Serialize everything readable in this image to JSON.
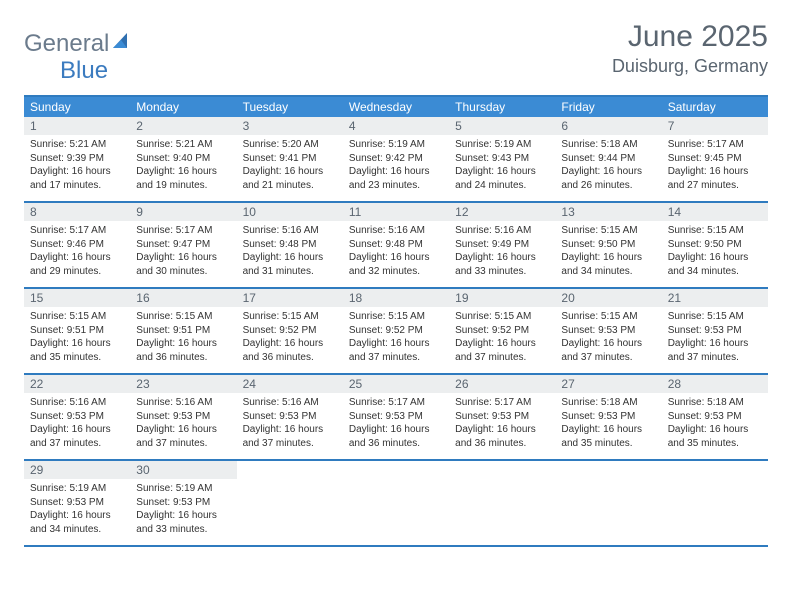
{
  "logo": {
    "text1": "General",
    "text2": "Blue"
  },
  "title": "June 2025",
  "location": "Duisburg, Germany",
  "colors": {
    "header_bg": "#3b8bd4",
    "border": "#2f7bbf",
    "daynum_bg": "#eceeef",
    "text_muted": "#5a6570"
  },
  "day_names": [
    "Sunday",
    "Monday",
    "Tuesday",
    "Wednesday",
    "Thursday",
    "Friday",
    "Saturday"
  ],
  "weeks": [
    [
      {
        "n": "1",
        "sr": "Sunrise: 5:21 AM",
        "ss": "Sunset: 9:39 PM",
        "d1": "Daylight: 16 hours",
        "d2": "and 17 minutes."
      },
      {
        "n": "2",
        "sr": "Sunrise: 5:21 AM",
        "ss": "Sunset: 9:40 PM",
        "d1": "Daylight: 16 hours",
        "d2": "and 19 minutes."
      },
      {
        "n": "3",
        "sr": "Sunrise: 5:20 AM",
        "ss": "Sunset: 9:41 PM",
        "d1": "Daylight: 16 hours",
        "d2": "and 21 minutes."
      },
      {
        "n": "4",
        "sr": "Sunrise: 5:19 AM",
        "ss": "Sunset: 9:42 PM",
        "d1": "Daylight: 16 hours",
        "d2": "and 23 minutes."
      },
      {
        "n": "5",
        "sr": "Sunrise: 5:19 AM",
        "ss": "Sunset: 9:43 PM",
        "d1": "Daylight: 16 hours",
        "d2": "and 24 minutes."
      },
      {
        "n": "6",
        "sr": "Sunrise: 5:18 AM",
        "ss": "Sunset: 9:44 PM",
        "d1": "Daylight: 16 hours",
        "d2": "and 26 minutes."
      },
      {
        "n": "7",
        "sr": "Sunrise: 5:17 AM",
        "ss": "Sunset: 9:45 PM",
        "d1": "Daylight: 16 hours",
        "d2": "and 27 minutes."
      }
    ],
    [
      {
        "n": "8",
        "sr": "Sunrise: 5:17 AM",
        "ss": "Sunset: 9:46 PM",
        "d1": "Daylight: 16 hours",
        "d2": "and 29 minutes."
      },
      {
        "n": "9",
        "sr": "Sunrise: 5:17 AM",
        "ss": "Sunset: 9:47 PM",
        "d1": "Daylight: 16 hours",
        "d2": "and 30 minutes."
      },
      {
        "n": "10",
        "sr": "Sunrise: 5:16 AM",
        "ss": "Sunset: 9:48 PM",
        "d1": "Daylight: 16 hours",
        "d2": "and 31 minutes."
      },
      {
        "n": "11",
        "sr": "Sunrise: 5:16 AM",
        "ss": "Sunset: 9:48 PM",
        "d1": "Daylight: 16 hours",
        "d2": "and 32 minutes."
      },
      {
        "n": "12",
        "sr": "Sunrise: 5:16 AM",
        "ss": "Sunset: 9:49 PM",
        "d1": "Daylight: 16 hours",
        "d2": "and 33 minutes."
      },
      {
        "n": "13",
        "sr": "Sunrise: 5:15 AM",
        "ss": "Sunset: 9:50 PM",
        "d1": "Daylight: 16 hours",
        "d2": "and 34 minutes."
      },
      {
        "n": "14",
        "sr": "Sunrise: 5:15 AM",
        "ss": "Sunset: 9:50 PM",
        "d1": "Daylight: 16 hours",
        "d2": "and 34 minutes."
      }
    ],
    [
      {
        "n": "15",
        "sr": "Sunrise: 5:15 AM",
        "ss": "Sunset: 9:51 PM",
        "d1": "Daylight: 16 hours",
        "d2": "and 35 minutes."
      },
      {
        "n": "16",
        "sr": "Sunrise: 5:15 AM",
        "ss": "Sunset: 9:51 PM",
        "d1": "Daylight: 16 hours",
        "d2": "and 36 minutes."
      },
      {
        "n": "17",
        "sr": "Sunrise: 5:15 AM",
        "ss": "Sunset: 9:52 PM",
        "d1": "Daylight: 16 hours",
        "d2": "and 36 minutes."
      },
      {
        "n": "18",
        "sr": "Sunrise: 5:15 AM",
        "ss": "Sunset: 9:52 PM",
        "d1": "Daylight: 16 hours",
        "d2": "and 37 minutes."
      },
      {
        "n": "19",
        "sr": "Sunrise: 5:15 AM",
        "ss": "Sunset: 9:52 PM",
        "d1": "Daylight: 16 hours",
        "d2": "and 37 minutes."
      },
      {
        "n": "20",
        "sr": "Sunrise: 5:15 AM",
        "ss": "Sunset: 9:53 PM",
        "d1": "Daylight: 16 hours",
        "d2": "and 37 minutes."
      },
      {
        "n": "21",
        "sr": "Sunrise: 5:15 AM",
        "ss": "Sunset: 9:53 PM",
        "d1": "Daylight: 16 hours",
        "d2": "and 37 minutes."
      }
    ],
    [
      {
        "n": "22",
        "sr": "Sunrise: 5:16 AM",
        "ss": "Sunset: 9:53 PM",
        "d1": "Daylight: 16 hours",
        "d2": "and 37 minutes."
      },
      {
        "n": "23",
        "sr": "Sunrise: 5:16 AM",
        "ss": "Sunset: 9:53 PM",
        "d1": "Daylight: 16 hours",
        "d2": "and 37 minutes."
      },
      {
        "n": "24",
        "sr": "Sunrise: 5:16 AM",
        "ss": "Sunset: 9:53 PM",
        "d1": "Daylight: 16 hours",
        "d2": "and 37 minutes."
      },
      {
        "n": "25",
        "sr": "Sunrise: 5:17 AM",
        "ss": "Sunset: 9:53 PM",
        "d1": "Daylight: 16 hours",
        "d2": "and 36 minutes."
      },
      {
        "n": "26",
        "sr": "Sunrise: 5:17 AM",
        "ss": "Sunset: 9:53 PM",
        "d1": "Daylight: 16 hours",
        "d2": "and 36 minutes."
      },
      {
        "n": "27",
        "sr": "Sunrise: 5:18 AM",
        "ss": "Sunset: 9:53 PM",
        "d1": "Daylight: 16 hours",
        "d2": "and 35 minutes."
      },
      {
        "n": "28",
        "sr": "Sunrise: 5:18 AM",
        "ss": "Sunset: 9:53 PM",
        "d1": "Daylight: 16 hours",
        "d2": "and 35 minutes."
      }
    ],
    [
      {
        "n": "29",
        "sr": "Sunrise: 5:19 AM",
        "ss": "Sunset: 9:53 PM",
        "d1": "Daylight: 16 hours",
        "d2": "and 34 minutes."
      },
      {
        "n": "30",
        "sr": "Sunrise: 5:19 AM",
        "ss": "Sunset: 9:53 PM",
        "d1": "Daylight: 16 hours",
        "d2": "and 33 minutes."
      },
      null,
      null,
      null,
      null,
      null
    ]
  ]
}
